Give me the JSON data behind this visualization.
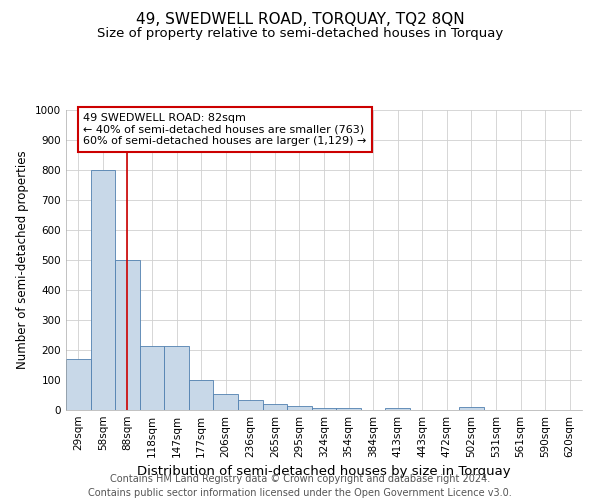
{
  "title": "49, SWEDWELL ROAD, TORQUAY, TQ2 8QN",
  "subtitle": "Size of property relative to semi-detached houses in Torquay",
  "xlabel": "Distribution of semi-detached houses by size in Torquay",
  "ylabel": "Number of semi-detached properties",
  "footer_line1": "Contains HM Land Registry data © Crown copyright and database right 2024.",
  "footer_line2": "Contains public sector information licensed under the Open Government Licence v3.0.",
  "bin_labels": [
    "29sqm",
    "58sqm",
    "88sqm",
    "118sqm",
    "147sqm",
    "177sqm",
    "206sqm",
    "236sqm",
    "265sqm",
    "295sqm",
    "324sqm",
    "354sqm",
    "384sqm",
    "413sqm",
    "443sqm",
    "472sqm",
    "502sqm",
    "531sqm",
    "561sqm",
    "590sqm",
    "620sqm"
  ],
  "bar_heights": [
    170,
    800,
    500,
    215,
    215,
    100,
    55,
    35,
    20,
    12,
    8,
    8,
    0,
    8,
    0,
    0,
    10,
    0,
    0,
    0,
    0
  ],
  "bar_color": "#c8d8e8",
  "bar_edge_color": "#5080b0",
  "vline_index": 2,
  "vline_color": "#cc0000",
  "annotation_line1": "49 SWEDWELL ROAD: 82sqm",
  "annotation_line2": "← 40% of semi-detached houses are smaller (763)",
  "annotation_line3": "60% of semi-detached houses are larger (1,129) →",
  "annotation_box_edge_color": "#cc0000",
  "ylim": [
    0,
    1000
  ],
  "yticks": [
    0,
    100,
    200,
    300,
    400,
    500,
    600,
    700,
    800,
    900,
    1000
  ],
  "grid_color": "#d0d0d0",
  "title_fontsize": 11,
  "subtitle_fontsize": 9.5,
  "xlabel_fontsize": 9.5,
  "ylabel_fontsize": 8.5,
  "tick_fontsize": 7.5,
  "annotation_fontsize": 8,
  "footer_fontsize": 7
}
